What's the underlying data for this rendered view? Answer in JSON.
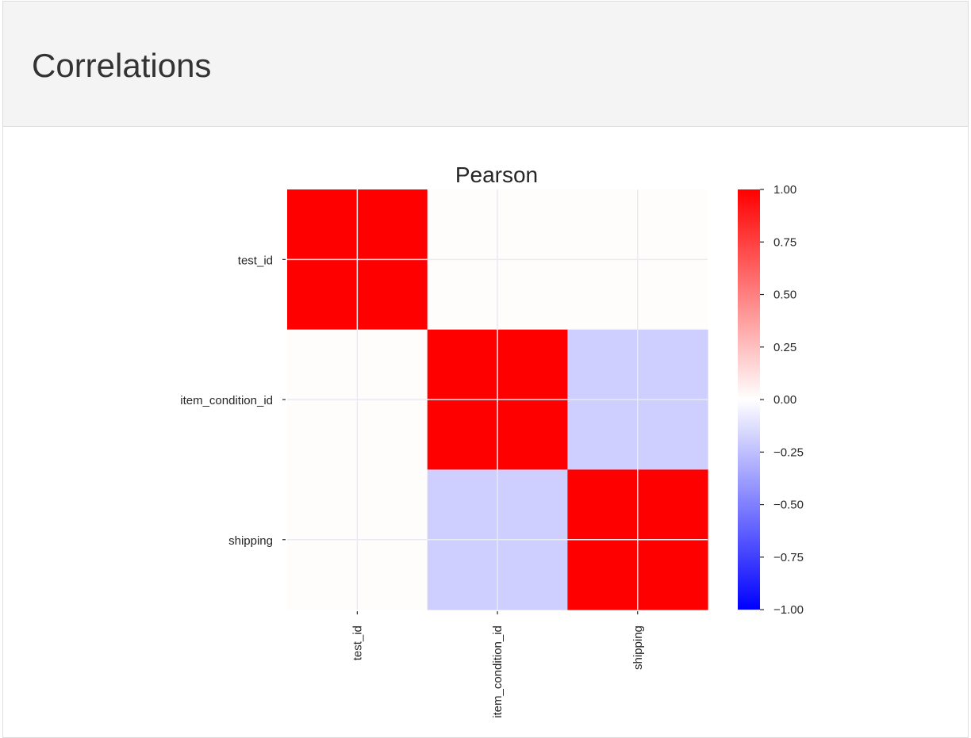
{
  "section": {
    "title": "Correlations"
  },
  "chart_data": {
    "type": "heatmap",
    "title": "Pearson",
    "rows": [
      "test_id",
      "item_condition_id",
      "shipping"
    ],
    "columns": [
      "test_id",
      "item_condition_id",
      "shipping"
    ],
    "values": [
      [
        1.0,
        0.0,
        0.0
      ],
      [
        0.0,
        1.0,
        -0.19
      ],
      [
        0.0,
        -0.19,
        1.0
      ]
    ],
    "colorbar": {
      "range": [
        -1.0,
        1.0
      ],
      "ticks": [
        "1.00",
        "0.75",
        "0.50",
        "0.25",
        "0.00",
        "−0.25",
        "−0.50",
        "−0.75",
        "−1.00"
      ],
      "tick_values": [
        1.0,
        0.75,
        0.5,
        0.25,
        0.0,
        -0.25,
        -0.5,
        -0.75,
        -1.0
      ],
      "colormap": "bwr",
      "colors": {
        "low": "#0000ff",
        "mid": "#ffffff",
        "high": "#ff0000"
      }
    },
    "grid": true,
    "grid_color": "#eaeaf2"
  }
}
